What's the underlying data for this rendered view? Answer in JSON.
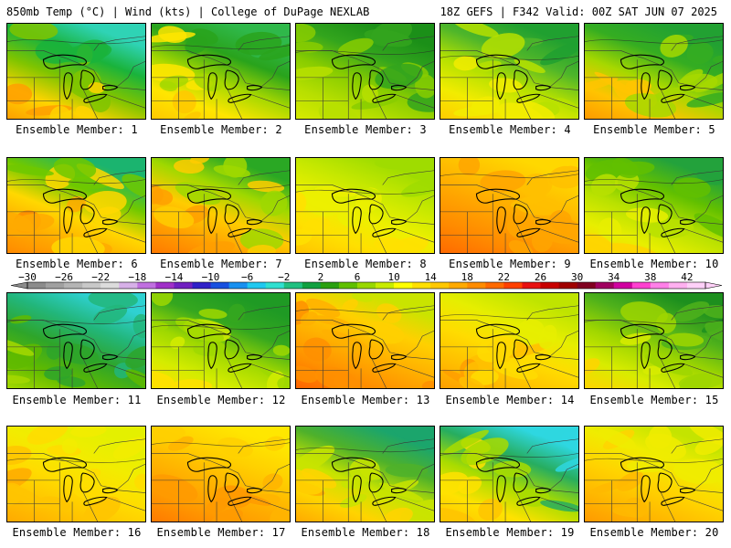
{
  "header": {
    "left_title": "850mb Temp (°C) | Wind (kts) | College of DuPage NEXLAB",
    "right_title": "18Z GEFS | F342 Valid: 00Z SAT JUN 07 2025"
  },
  "panels": [
    {
      "label": "Ensemble Member: 1",
      "scheme": [
        "#ff9f00",
        "#ffd400",
        "#7fc400",
        "#1ab33b",
        "#2fd3b5"
      ]
    },
    {
      "label": "Ensemble Member: 2",
      "scheme": [
        "#ffc800",
        "#ffe600",
        "#a7d800",
        "#29a31c",
        "#2fb84a"
      ]
    },
    {
      "label": "Ensemble Member: 3",
      "scheme": [
        "#d7ea00",
        "#b7df00",
        "#88cc00",
        "#33a51d",
        "#1b8f18"
      ]
    },
    {
      "label": "Ensemble Member: 4",
      "scheme": [
        "#ffcc00",
        "#f2ec00",
        "#b6e100",
        "#4fb62a",
        "#20a030"
      ]
    },
    {
      "label": "Ensemble Member: 5",
      "scheme": [
        "#ff9a00",
        "#ffc400",
        "#a6d800",
        "#35ad21",
        "#22a132"
      ]
    },
    {
      "label": "Ensemble Member: 6",
      "scheme": [
        "#ff8a00",
        "#ffaa00",
        "#ffd800",
        "#6fc800",
        "#1bb46f"
      ]
    },
    {
      "label": "Ensemble Member: 7",
      "scheme": [
        "#ff7a00",
        "#ff9f00",
        "#ffcc00",
        "#9fd800",
        "#2aa824"
      ]
    },
    {
      "label": "Ensemble Member: 8",
      "scheme": [
        "#ffc400",
        "#ffe000",
        "#ecf000",
        "#c6e800",
        "#9fdc00"
      ]
    },
    {
      "label": "Ensemble Member: 9",
      "scheme": [
        "#ff6a00",
        "#ff8a00",
        "#ffa400",
        "#ffbf00",
        "#ffd800"
      ]
    },
    {
      "label": "Ensemble Member: 10",
      "scheme": [
        "#ffd400",
        "#e8ee00",
        "#b8e100",
        "#62c000",
        "#23a23c"
      ]
    },
    {
      "label": "Ensemble Member: 11",
      "scheme": [
        "#a4d800",
        "#5fba00",
        "#2ea52a",
        "#22b67a",
        "#2fd1d1"
      ]
    },
    {
      "label": "Ensemble Member: 12",
      "scheme": [
        "#ffe000",
        "#d4ec00",
        "#9fd800",
        "#35a71f",
        "#1f9a24"
      ]
    },
    {
      "label": "Ensemble Member: 13",
      "scheme": [
        "#ff6400",
        "#ff8f00",
        "#ffb000",
        "#ffd000",
        "#c9e400"
      ]
    },
    {
      "label": "Ensemble Member: 14",
      "scheme": [
        "#ff9f00",
        "#ffbf00",
        "#ffdc00",
        "#e6ee00",
        "#bfe400"
      ]
    },
    {
      "label": "Ensemble Member: 15",
      "scheme": [
        "#ffd400",
        "#d8ec00",
        "#9fd600",
        "#4fb11b",
        "#1d8f1e"
      ]
    },
    {
      "label": "Ensemble Member: 16",
      "scheme": [
        "#ffaa00",
        "#ffc400",
        "#ffdc00",
        "#f2ec00",
        "#e4f000"
      ]
    },
    {
      "label": "Ensemble Member: 17",
      "scheme": [
        "#ff7a00",
        "#ff9a00",
        "#ffb400",
        "#ffd000",
        "#ffe600"
      ]
    },
    {
      "label": "Ensemble Member: 18",
      "scheme": [
        "#ffaa00",
        "#ffd400",
        "#c8e400",
        "#4fb12a",
        "#1ba56c"
      ]
    },
    {
      "label": "Ensemble Member: 19",
      "scheme": [
        "#ffc400",
        "#ffe200",
        "#a8dc00",
        "#27ad5f",
        "#2ed7e0"
      ]
    },
    {
      "label": "Ensemble Member: 20",
      "scheme": [
        "#ff9a00",
        "#ffb800",
        "#ffd400",
        "#f0ec00",
        "#c4e400"
      ]
    }
  ],
  "colorbar": {
    "ticks": [
      "−30",
      "−26",
      "−22",
      "−18",
      "−14",
      "−10",
      "−6",
      "−2",
      "2",
      "6",
      "10",
      "14",
      "18",
      "22",
      "26",
      "30",
      "34",
      "38",
      "42"
    ],
    "colors": [
      "#8c8c8c",
      "#a0a0a0",
      "#b4b4b4",
      "#c8c8c8",
      "#dcdcdc",
      "#d7b0e8",
      "#c070e0",
      "#a030c8",
      "#7020c0",
      "#3020c8",
      "#1850e0",
      "#1890f0",
      "#20c8f0",
      "#30e0d0",
      "#20c080",
      "#10a040",
      "#2aa010",
      "#60c000",
      "#98d800",
      "#c8ec00",
      "#ffff00",
      "#ffe000",
      "#ffc800",
      "#ffaa00",
      "#ff8c00",
      "#ff6a00",
      "#ff4000",
      "#e81010",
      "#c80000",
      "#a00000",
      "#800020",
      "#a00060",
      "#d000a0",
      "#ff40d0",
      "#ff80e8",
      "#ffb0f0",
      "#ffd0f8"
    ]
  }
}
